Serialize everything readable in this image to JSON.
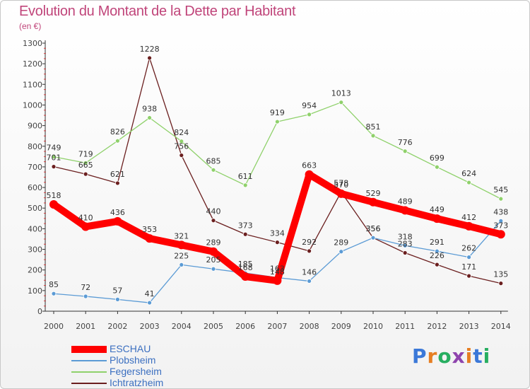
{
  "title": "Evolution du Montant de la Dette par Habitant",
  "subtitle": "(en €)",
  "logo": {
    "letters": [
      {
        "ch": "P",
        "color": "#3b78d8"
      },
      {
        "ch": "r",
        "color": "#e67e22"
      },
      {
        "ch": "o",
        "color": "#27ae60"
      },
      {
        "ch": "x",
        "color": "#8e44ad"
      },
      {
        "ch": "i",
        "color": "#e67e22"
      },
      {
        "ch": "t",
        "color": "#3b78d8"
      },
      {
        "ch": "i",
        "color": "#27ae60"
      }
    ]
  },
  "chart_data": {
    "type": "line",
    "title": "Evolution du Montant de la Dette par Habitant",
    "subtitle": "(en €)",
    "xlabel": "",
    "ylabel": "",
    "x": [
      "2000",
      "2001",
      "2002",
      "2003",
      "2004",
      "2005",
      "2006",
      "2007",
      "2008",
      "2009",
      "2010",
      "2011",
      "2012",
      "2013",
      "2014"
    ],
    "ylim": [
      0,
      1300
    ],
    "yticks": [
      0,
      100,
      200,
      300,
      400,
      500,
      600,
      700,
      800,
      900,
      1000,
      1100,
      1200,
      1300
    ],
    "grid": false,
    "legend_position": "bottom-left",
    "series": [
      {
        "name": "Ichtratzheim",
        "color": "#6b1f1f",
        "values": [
          701,
          665,
          621,
          1228,
          756,
          440,
          373,
          334,
          292,
          578,
          356,
          283,
          226,
          171,
          135
        ]
      },
      {
        "name": "Fegersheim",
        "color": "#8fd16b",
        "values": [
          749,
          719,
          826,
          938,
          824,
          685,
          611,
          919,
          954,
          1013,
          851,
          776,
          699,
          624,
          545
        ]
      },
      {
        "name": "Plobsheim",
        "color": "#5b9bd5",
        "values": [
          85,
          72,
          57,
          41,
          225,
          205,
          185,
          163,
          146,
          289,
          356,
          318,
          291,
          262,
          438
        ]
      },
      {
        "name": "ESCHAU",
        "color": "#ff0000",
        "values": [
          518,
          410,
          436,
          353,
          321,
          289,
          168,
          148,
          663,
          570,
          529,
          489,
          449,
          412,
          373
        ]
      }
    ],
    "legend_order": [
      "ESCHAU",
      "Plobsheim",
      "Fegersheim",
      "Ichtratzheim"
    ]
  }
}
